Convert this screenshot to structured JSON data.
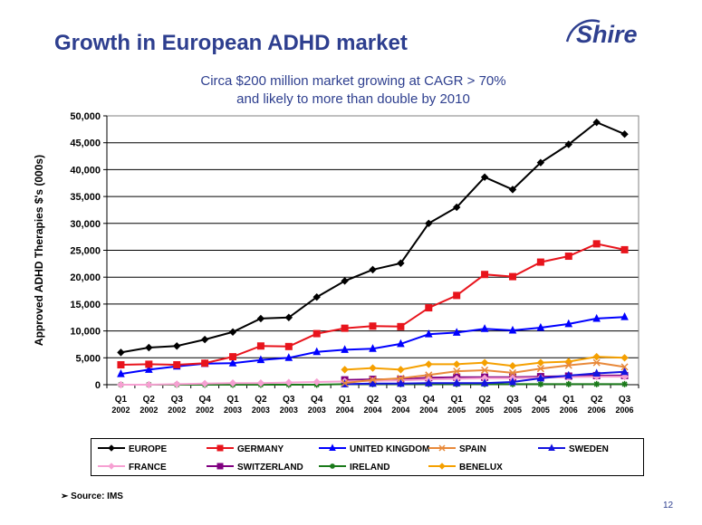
{
  "slide": {
    "title": "Growth in European ADHD market",
    "subtitle_line1": "Circa $200 million market growing at CAGR > 70%",
    "subtitle_line2": "and likely to more than double by 2010",
    "logo_text": "Shire",
    "source_bullet": "➢",
    "source": "Source: IMS",
    "page_number": "12"
  },
  "chart_data": {
    "type": "line",
    "title": "",
    "xlabel": "",
    "ylabel": "Approved ADHD Therapies $'s (000s)",
    "ylim": [
      0,
      50000
    ],
    "yticks": [
      0,
      5000,
      10000,
      15000,
      20000,
      25000,
      30000,
      35000,
      40000,
      45000,
      50000
    ],
    "ytick_labels": [
      "0",
      "5,000",
      "10,000",
      "15,000",
      "20,000",
      "25,000",
      "30,000",
      "35,000",
      "40,000",
      "45,000",
      "50,000"
    ],
    "grid": "horizontal",
    "legend_position": "bottom",
    "categories": [
      [
        "Q1",
        "2002"
      ],
      [
        "Q2",
        "2002"
      ],
      [
        "Q3",
        "2002"
      ],
      [
        "Q4",
        "2002"
      ],
      [
        "Q1",
        "2003"
      ],
      [
        "Q2",
        "2003"
      ],
      [
        "Q3",
        "2003"
      ],
      [
        "Q4",
        "2003"
      ],
      [
        "Q1",
        "2004"
      ],
      [
        "Q2",
        "2004"
      ],
      [
        "Q3",
        "2004"
      ],
      [
        "Q4",
        "2004"
      ],
      [
        "Q1",
        "2005"
      ],
      [
        "Q2",
        "2005"
      ],
      [
        "Q3",
        "2005"
      ],
      [
        "Q4",
        "2005"
      ],
      [
        "Q1",
        "2006"
      ],
      [
        "Q2",
        "2006"
      ],
      [
        "Q3",
        "2006"
      ]
    ],
    "series": [
      {
        "name": "EUROPE",
        "color": "#000000",
        "marker": "diamond",
        "values": [
          6000,
          6900,
          7200,
          8400,
          9800,
          12300,
          12500,
          16300,
          19300,
          21400,
          22600,
          30000,
          33000,
          38600,
          36300,
          41300,
          44700,
          48800,
          46600
        ]
      },
      {
        "name": "GERMANY",
        "color": "#e8141c",
        "marker": "square",
        "values": [
          3700,
          3800,
          3700,
          4000,
          5200,
          7200,
          7100,
          9500,
          10500,
          10900,
          10800,
          14300,
          16600,
          20500,
          20100,
          22800,
          23900,
          26200,
          25100
        ]
      },
      {
        "name": "UNITED KINGDOM",
        "color": "#0000ff",
        "marker": "triangle",
        "values": [
          2000,
          2800,
          3400,
          3900,
          4000,
          4600,
          5000,
          6100,
          6500,
          6700,
          7600,
          9400,
          9700,
          10400,
          10100,
          10600,
          11300,
          12300,
          12600
        ]
      },
      {
        "name": "SPAIN",
        "color": "#e8893a",
        "marker": "x",
        "values": [
          null,
          null,
          null,
          null,
          null,
          null,
          null,
          null,
          300,
          900,
          1200,
          1800,
          2500,
          2700,
          2200,
          3000,
          3600,
          4100,
          3300
        ]
      },
      {
        "name": "SWEDEN",
        "color": "#1414e0",
        "marker": "triangle",
        "values": [
          null,
          null,
          null,
          null,
          null,
          null,
          null,
          null,
          100,
          200,
          200,
          300,
          300,
          300,
          500,
          1200,
          1700,
          2100,
          2400
        ]
      },
      {
        "name": "FRANCE",
        "color": "#f6a0d2",
        "marker": "diamond",
        "values": [
          0,
          0,
          100,
          200,
          300,
          300,
          400,
          500,
          600,
          700,
          800,
          1000,
          1100,
          1200,
          1200,
          1300,
          1400,
          1500,
          1500
        ]
      },
      {
        "name": "SWITZERLAND",
        "color": "#800080",
        "marker": "square",
        "values": [
          null,
          null,
          null,
          null,
          null,
          null,
          null,
          null,
          900,
          1000,
          1000,
          1300,
          1400,
          1400,
          1400,
          1500,
          1600,
          1700,
          1700
        ]
      },
      {
        "name": "IRELAND",
        "color": "#1a7a1a",
        "marker": "star",
        "values": [
          0,
          0,
          0,
          0,
          0,
          0,
          0,
          0,
          100,
          100,
          100,
          100,
          100,
          100,
          100,
          100,
          100,
          100,
          100
        ]
      },
      {
        "name": "BENELUX",
        "color": "#f5a000",
        "marker": "diamond",
        "values": [
          null,
          null,
          null,
          null,
          null,
          null,
          null,
          null,
          2800,
          3100,
          2800,
          3800,
          3800,
          4100,
          3500,
          4100,
          4300,
          5200,
          5000
        ]
      }
    ]
  }
}
